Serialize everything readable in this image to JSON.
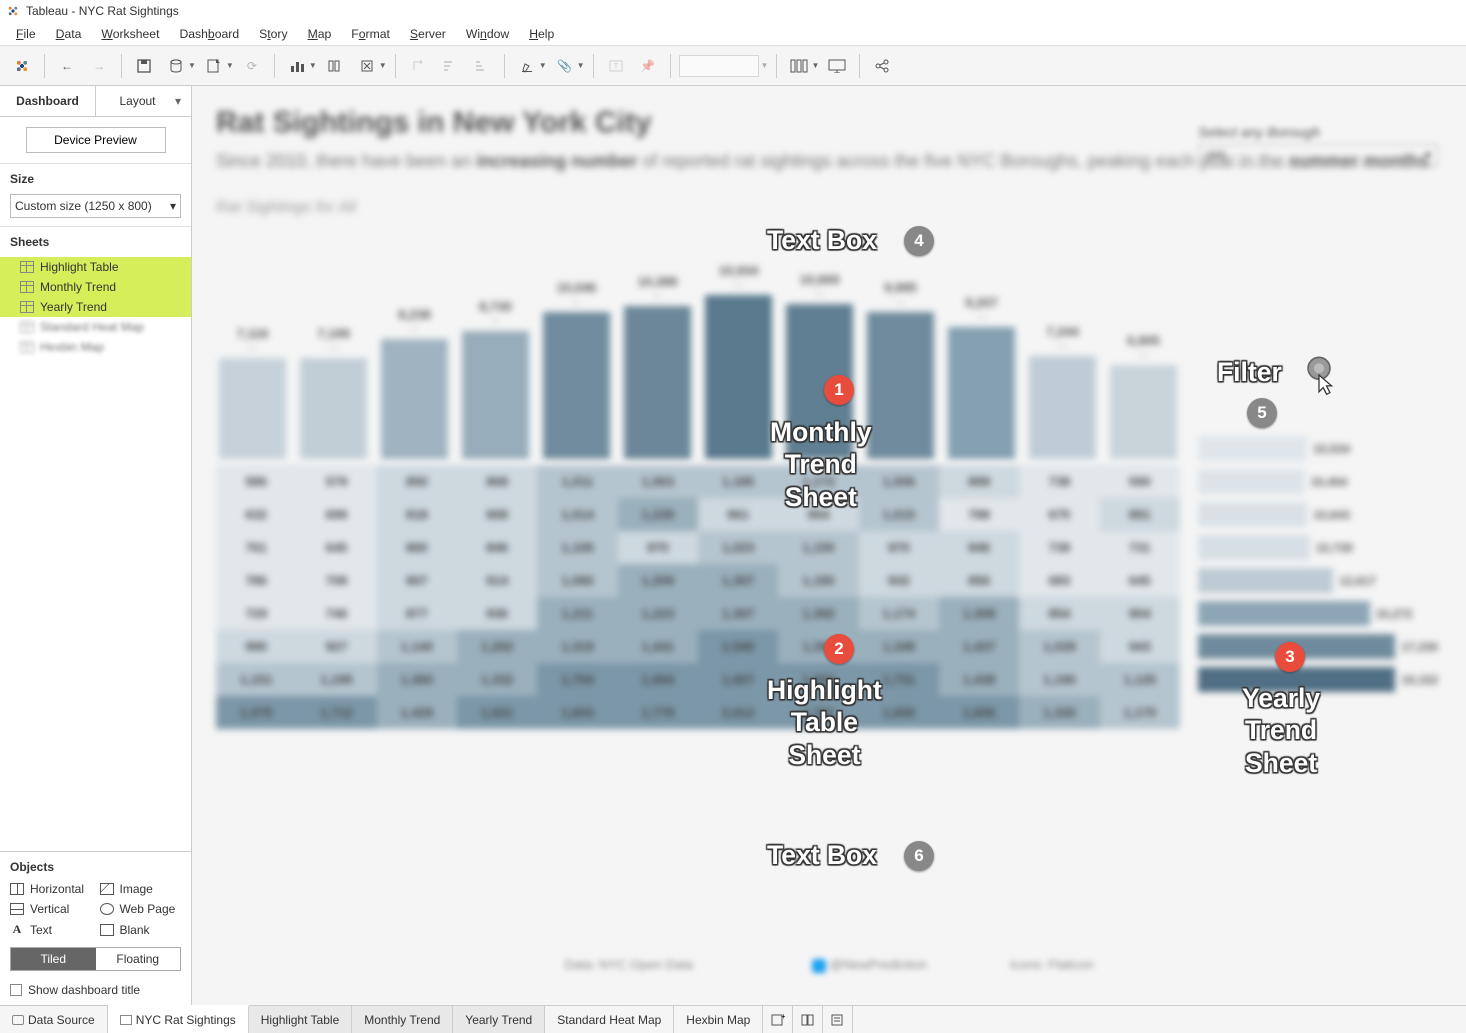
{
  "window": {
    "title": "Tableau - NYC Rat Sightings"
  },
  "menu": [
    "File",
    "Data",
    "Worksheet",
    "Dashboard",
    "Story",
    "Map",
    "Format",
    "Server",
    "Window",
    "Help"
  ],
  "sidebar": {
    "tabs": {
      "dashboard": "Dashboard",
      "layout": "Layout"
    },
    "device_preview": "Device Preview",
    "size_label": "Size",
    "size_value": "Custom size (1250 x 800)",
    "sheets_label": "Sheets",
    "sheets": [
      {
        "name": "Highlight Table",
        "highlighted": true
      },
      {
        "name": "Monthly Trend",
        "highlighted": true
      },
      {
        "name": "Yearly Trend",
        "highlighted": true
      },
      {
        "name": "Standard Heat Map",
        "blurred": true
      },
      {
        "name": "Hexbin Map",
        "blurred": true
      }
    ],
    "objects_label": "Objects",
    "objects": [
      "Horizontal",
      "Image",
      "Vertical",
      "Web Page",
      "Text",
      "Blank"
    ],
    "tiled": "Tiled",
    "floating": "Floating",
    "show_title": "Show dashboard title"
  },
  "dashboard": {
    "title": "Rat Sightings in New York City",
    "subtitle_a": "Since 2010, there have been an ",
    "subtitle_b": "increasing number",
    "subtitle_c": " of reported rat sightings across the five NYC Boroughs, peaking each year in the ",
    "subtitle_d": "summer months",
    "subtitle_e": ".",
    "chart_caption": "Rat Sightings for All",
    "filter_label": "Select any Borough",
    "filter_value": "(All)",
    "footer_a": "Data: NYC Open Data",
    "footer_b": "@NewPrediction",
    "footer_c": "Icons: Flaticon"
  },
  "monthly_bars": {
    "type": "bar",
    "labels": [
      "7,116",
      "7,199",
      "8,238",
      "8,730",
      "10,046",
      "10,388",
      "10,934",
      "10,669",
      "9,995",
      "9,207",
      "7,244",
      "6,905"
    ],
    "heights_pct": [
      48,
      48,
      57,
      61,
      70,
      73,
      78,
      74,
      70,
      63,
      49,
      45
    ],
    "colors": [
      "#c6d1d9",
      "#c2ced6",
      "#9fb3c0",
      "#97adbb",
      "#708c9e",
      "#6b8799",
      "#5a7a8e",
      "#617f92",
      "#708b9d",
      "#84a0b1",
      "#bfccd5",
      "#c8d3da"
    ]
  },
  "highlight_table": {
    "type": "heatmap_table",
    "colors_row_bg": [
      "#e3e9ed",
      "#dde4e9",
      "#d5dee4",
      "#ced9e0",
      "#c4d1d9",
      "#bccbd4",
      "#b2c3ce",
      "#a7bbc7",
      "#9db3c1"
    ],
    "rows": [
      [
        "586",
        "579",
        "850",
        "868",
        "1,011",
        "1,063",
        "1,185",
        "1,172",
        "1,006",
        "899",
        "738",
        "590"
      ],
      [
        "632",
        "699",
        "818",
        "908",
        "1,014",
        "1,239",
        "961",
        "954",
        "1,015",
        "788",
        "675",
        "891"
      ],
      [
        "761",
        "645",
        "860",
        "846",
        "1,106",
        "970",
        "1,023",
        "1,150",
        "970",
        "846",
        "739",
        "731"
      ],
      [
        "786",
        "708",
        "907",
        "914",
        "1,080",
        "1,209",
        "1,307",
        "1,180",
        "932",
        "856",
        "683",
        "645"
      ],
      [
        "729",
        "746",
        "877",
        "936",
        "1,211",
        "1,223",
        "1,307",
        "1,392",
        "1,174",
        "1,308",
        "854",
        "904"
      ],
      [
        "990",
        "927",
        "1,140",
        "1,262",
        "1,319",
        "1,441",
        "1,540",
        "1,399",
        "1,348",
        "1,437",
        "1,028",
        "943"
      ],
      [
        "1,151",
        "1,195",
        "1,360",
        "1,332",
        "1,704",
        "1,664",
        "1,607",
        "1,662",
        "1,731",
        "1,438",
        "1,190",
        "1,125"
      ],
      [
        "1,575",
        "1,712",
        "1,429",
        "1,621",
        "1,603",
        "1,779",
        "2,012",
        "1,761",
        "1,600",
        "1,606",
        "1,330",
        "1,170"
      ]
    ]
  },
  "yearly_bars": {
    "type": "bar_horizontal",
    "labels": [
      "10,534",
      "10,454",
      "10,643",
      "10,739",
      "12,617",
      "15,272",
      "17,230",
      "19,152"
    ],
    "widths_pct": [
      42,
      41,
      42,
      43,
      52,
      66,
      76,
      88
    ],
    "colors": [
      "#dfe6eb",
      "#dde4e9",
      "#d9e1e7",
      "#d6dfe5",
      "#bccbd4",
      "#8da6b5",
      "#6f8b9d",
      "#516f84"
    ]
  },
  "callouts": {
    "c1": "Monthly\nTrend\nSheet",
    "c2": "Highlight\nTable\nSheet",
    "c3": "Yearly\nTrend\nSheet",
    "c4": "Text Box",
    "c5": "Filter",
    "c6": "Text Box"
  },
  "bottom_tabs": {
    "data_source": "Data Source",
    "tabs": [
      "NYC Rat Sightings",
      "Highlight Table",
      "Monthly Trend",
      "Yearly Trend",
      "Standard Heat Map",
      "Hexbin Map"
    ]
  },
  "palette": {
    "badge_red": "#e74c3c",
    "badge_grey": "#888888",
    "ui_bg": "#f5f5f5",
    "highlight_yellow": "#d7ee5b"
  }
}
